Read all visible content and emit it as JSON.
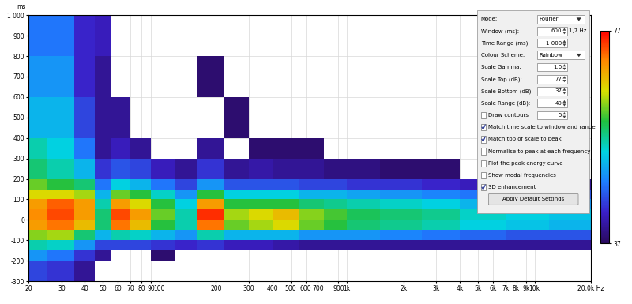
{
  "chart_data": {
    "type": "heatmap",
    "y_label": "ms",
    "log": "x",
    "grid": true,
    "xlim": [
      20,
      20000
    ],
    "ylim": [
      -300,
      1000
    ],
    "xticks": [
      20,
      30,
      40,
      50,
      60,
      70,
      80,
      90,
      100,
      200,
      300,
      400,
      500,
      600,
      700,
      900,
      {
        "value": 1000,
        "label": "1k"
      },
      {
        "value": 2000,
        "label": "2k"
      },
      {
        "value": 3000,
        "label": "3k"
      },
      {
        "value": 4000,
        "label": "4k"
      },
      {
        "value": 5000,
        "label": "5k"
      },
      {
        "value": 6000,
        "label": "6k"
      },
      {
        "value": 7000,
        "label": "7k"
      },
      {
        "value": 8000,
        "label": "8k"
      },
      {
        "value": 9000,
        "label": "9k"
      },
      {
        "value": 10000,
        "label": "10k"
      },
      {
        "value": 20000,
        "label": "20,0k Hz"
      }
    ],
    "yticks": [
      -300,
      -200,
      -100,
      0,
      100,
      200,
      300,
      400,
      500,
      600,
      700,
      800,
      900,
      {
        "value": 1000,
        "label": "1 000"
      }
    ],
    "frequency_edges": [
      20,
      25,
      35,
      45,
      55,
      70,
      90,
      120,
      160,
      220,
      300,
      400,
      550,
      750,
      1000,
      1500,
      2500,
      4000,
      7000,
      12000,
      20000
    ],
    "time_edges": [
      -300,
      -200,
      -150,
      -100,
      -50,
      0,
      50,
      100,
      150,
      200,
      300,
      400,
      600,
      800,
      1000
    ],
    "cells": [
      [
        45,
        44,
        40,
        null,
        null,
        null,
        null,
        null,
        null,
        null,
        null,
        null,
        null,
        null,
        null,
        null,
        null,
        null,
        null,
        null
      ],
      [
        50,
        48,
        44,
        40,
        null,
        null,
        38,
        null,
        null,
        null,
        null,
        null,
        null,
        null,
        null,
        null,
        null,
        null,
        null,
        null
      ],
      [
        56,
        55,
        50,
        45,
        45,
        45,
        44,
        43,
        44,
        42,
        42,
        41,
        40,
        40,
        40,
        40,
        40,
        40,
        40,
        40
      ],
      [
        63,
        64,
        58,
        52,
        56,
        55,
        52,
        50,
        56,
        52,
        52,
        52,
        50,
        50,
        50,
        49,
        48,
        47,
        46,
        46
      ],
      [
        70,
        72,
        68,
        58,
        72,
        68,
        60,
        56,
        72,
        62,
        64,
        66,
        62,
        60,
        58,
        57,
        56,
        54,
        53,
        52
      ],
      [
        71,
        74,
        70,
        58,
        74,
        70,
        62,
        56,
        75,
        64,
        66,
        68,
        63,
        61,
        59,
        58,
        57,
        55,
        54,
        53
      ],
      [
        70,
        73,
        70,
        56,
        70,
        66,
        60,
        54,
        70,
        60,
        60,
        60,
        58,
        57,
        56,
        55,
        54,
        52,
        51,
        50
      ],
      [
        66,
        66,
        64,
        52,
        62,
        60,
        55,
        50,
        60,
        54,
        54,
        54,
        52,
        52,
        51,
        50,
        49,
        48,
        47,
        46
      ],
      [
        62,
        60,
        58,
        48,
        54,
        52,
        48,
        45,
        50,
        46,
        46,
        46,
        45,
        45,
        44,
        44,
        43,
        42,
        42,
        40
      ],
      [
        58,
        56,
        52,
        44,
        46,
        45,
        42,
        40,
        44,
        40,
        41,
        40,
        40,
        39,
        39,
        38,
        38,
        null,
        null,
        null
      ],
      [
        56,
        54,
        48,
        40,
        42,
        40,
        null,
        null,
        40,
        null,
        38,
        38,
        38,
        null,
        null,
        null,
        null,
        null,
        null,
        null
      ],
      [
        52,
        52,
        45,
        40,
        40,
        null,
        null,
        null,
        null,
        38,
        null,
        null,
        null,
        null,
        null,
        null,
        null,
        null,
        null,
        null
      ],
      [
        50,
        50,
        43,
        40,
        null,
        null,
        null,
        null,
        38,
        null,
        null,
        null,
        null,
        null,
        null,
        null,
        null,
        null,
        null,
        null
      ],
      [
        48,
        48,
        43,
        42,
        null,
        null,
        null,
        null,
        null,
        null,
        null,
        null,
        null,
        null,
        null,
        null,
        null,
        null,
        null,
        null
      ]
    ],
    "colorbar": {
      "range": [
        37,
        77
      ],
      "ticks": [
        37,
        77
      ]
    }
  },
  "settings_panel": {
    "rows": [
      {
        "label": "Mode:",
        "value": "Fourier",
        "dropdown": true
      },
      {
        "label": "Window (ms):",
        "value": "600",
        "unit": "1,7 Hz"
      },
      {
        "label": "Time Range (ms):",
        "value": "1 000"
      },
      {
        "label": "Colour Scheme:",
        "value": "Rainbow",
        "dropdown": true
      },
      {
        "label": "Scale Gamma:",
        "value": "1,0"
      },
      {
        "label": "Scale Top (dB):",
        "value": "77"
      },
      {
        "label": "Scale Bottom (dB):",
        "value": "37"
      },
      {
        "label": "Scale Range (dB):",
        "value": "40"
      },
      {
        "label": "Draw contours",
        "value": "5",
        "checked": false
      },
      {
        "label": "Match time scale to window and range",
        "checked": true
      },
      {
        "label": "Match top of scale to peak",
        "checked": true
      },
      {
        "label": "Normalise to peak at each frequency",
        "checked": false
      },
      {
        "label": "Plot the peak energy curve",
        "checked": false
      },
      {
        "label": "Show modal frequencies",
        "checked": false
      },
      {
        "label": "3D enhancement",
        "checked": true
      }
    ],
    "button": "Apply Default Settings"
  }
}
